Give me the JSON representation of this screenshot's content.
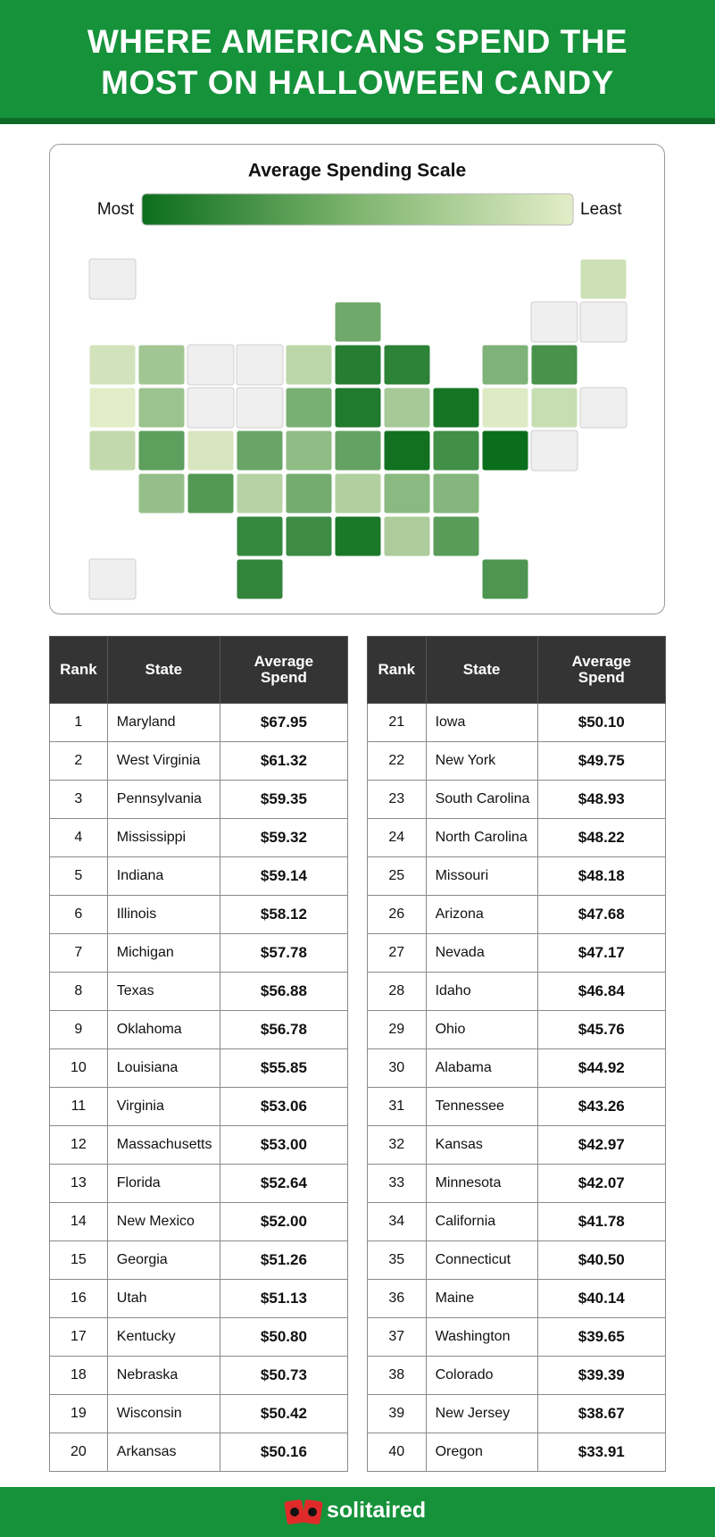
{
  "header": {
    "title": "WHERE AMERICANS SPEND THE MOST ON HALLOWEEN CANDY"
  },
  "legend": {
    "title": "Average Spending Scale",
    "most": "Most",
    "least": "Least"
  },
  "tables": [
    {
      "columns": [
        "Rank",
        "State",
        "Average Spend"
      ],
      "rows": [
        [
          1,
          "Maryland",
          "$67.95"
        ],
        [
          2,
          "West Virginia",
          "$61.32"
        ],
        [
          3,
          "Pennsylvania",
          "$59.35"
        ],
        [
          4,
          "Mississippi",
          "$59.32"
        ],
        [
          5,
          "Indiana",
          "$59.14"
        ],
        [
          6,
          "Illinois",
          "$58.12"
        ],
        [
          7,
          "Michigan",
          "$57.78"
        ],
        [
          8,
          "Texas",
          "$56.88"
        ],
        [
          9,
          "Oklahoma",
          "$56.78"
        ],
        [
          10,
          "Louisiana",
          "$55.85"
        ],
        [
          11,
          "Virginia",
          "$53.06"
        ],
        [
          12,
          "Massachusetts",
          "$53.00"
        ],
        [
          13,
          "Florida",
          "$52.64"
        ],
        [
          14,
          "New Mexico",
          "$52.00"
        ],
        [
          15,
          "Georgia",
          "$51.26"
        ],
        [
          16,
          "Utah",
          "$51.13"
        ],
        [
          17,
          "Kentucky",
          "$50.80"
        ],
        [
          18,
          "Nebraska",
          "$50.73"
        ],
        [
          19,
          "Wisconsin",
          "$50.42"
        ],
        [
          20,
          "Arkansas",
          "$50.16"
        ]
      ]
    },
    {
      "columns": [
        "Rank",
        "State",
        "Average Spend"
      ],
      "rows": [
        [
          21,
          "Iowa",
          "$50.10"
        ],
        [
          22,
          "New York",
          "$49.75"
        ],
        [
          23,
          "South Carolina",
          "$48.93"
        ],
        [
          24,
          "North Carolina",
          "$48.22"
        ],
        [
          25,
          "Missouri",
          "$48.18"
        ],
        [
          26,
          "Arizona",
          "$47.68"
        ],
        [
          27,
          "Nevada",
          "$47.17"
        ],
        [
          28,
          "Idaho",
          "$46.84"
        ],
        [
          29,
          "Ohio",
          "$45.76"
        ],
        [
          30,
          "Alabama",
          "$44.92"
        ],
        [
          31,
          "Tennessee",
          "$43.26"
        ],
        [
          32,
          "Kansas",
          "$42.97"
        ],
        [
          33,
          "Minnesota",
          "$42.07"
        ],
        [
          34,
          "California",
          "$41.78"
        ],
        [
          35,
          "Connecticut",
          "$40.50"
        ],
        [
          36,
          "Maine",
          "$40.14"
        ],
        [
          37,
          "Washington",
          "$39.65"
        ],
        [
          38,
          "Colorado",
          "$39.39"
        ],
        [
          39,
          "New Jersey",
          "$38.67"
        ],
        [
          40,
          "Oregon",
          "$33.91"
        ]
      ]
    }
  ],
  "footer": {
    "brand": "solitaired"
  }
}
